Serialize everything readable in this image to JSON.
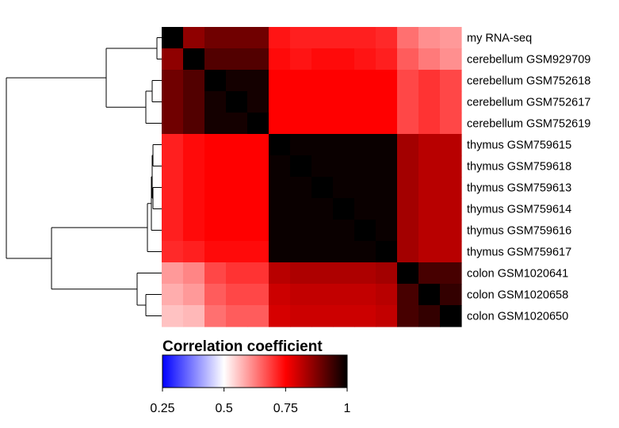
{
  "chart_data": {
    "type": "heatmap",
    "rows": [
      "my RNA-seq",
      "cerebellum GSM929709",
      "cerebellum GSM752618",
      "cerebellum GSM752617",
      "cerebellum GSM752619",
      "thymus GSM759615",
      "thymus GSM759618",
      "thymus GSM759613",
      "thymus GSM759614",
      "thymus GSM759616",
      "thymus GSM759617",
      "colon GSM1020641",
      "colon GSM1020658",
      "colon GSM1020650"
    ],
    "values": [
      [
        1.0,
        0.86,
        0.89,
        0.89,
        0.89,
        0.73,
        0.72,
        0.72,
        0.72,
        0.72,
        0.71,
        0.64,
        0.61,
        0.6
      ],
      [
        0.86,
        1.0,
        0.92,
        0.92,
        0.92,
        0.74,
        0.73,
        0.74,
        0.74,
        0.73,
        0.72,
        0.66,
        0.63,
        0.61
      ],
      [
        0.89,
        0.92,
        1.0,
        0.98,
        0.98,
        0.75,
        0.75,
        0.75,
        0.75,
        0.75,
        0.75,
        0.68,
        0.7,
        0.68
      ],
      [
        0.89,
        0.92,
        0.98,
        1.0,
        0.98,
        0.75,
        0.75,
        0.75,
        0.75,
        0.75,
        0.75,
        0.68,
        0.7,
        0.68
      ],
      [
        0.89,
        0.92,
        0.98,
        0.98,
        1.0,
        0.75,
        0.75,
        0.75,
        0.75,
        0.75,
        0.75,
        0.68,
        0.7,
        0.68
      ],
      [
        0.72,
        0.74,
        0.75,
        0.75,
        0.75,
        1.0,
        0.99,
        0.99,
        0.99,
        0.99,
        0.99,
        0.84,
        0.82,
        0.82
      ],
      [
        0.72,
        0.74,
        0.75,
        0.75,
        0.75,
        0.99,
        1.0,
        0.99,
        0.99,
        0.99,
        0.99,
        0.84,
        0.82,
        0.82
      ],
      [
        0.72,
        0.74,
        0.75,
        0.75,
        0.75,
        0.99,
        0.99,
        1.0,
        0.99,
        0.99,
        0.99,
        0.84,
        0.82,
        0.82
      ],
      [
        0.72,
        0.74,
        0.75,
        0.75,
        0.75,
        0.99,
        0.99,
        0.99,
        1.0,
        0.99,
        0.99,
        0.84,
        0.82,
        0.82
      ],
      [
        0.72,
        0.74,
        0.75,
        0.75,
        0.75,
        0.99,
        0.99,
        0.99,
        0.99,
        1.0,
        0.99,
        0.84,
        0.82,
        0.82
      ],
      [
        0.71,
        0.72,
        0.74,
        0.74,
        0.74,
        0.99,
        0.99,
        0.99,
        0.99,
        0.99,
        1.0,
        0.84,
        0.82,
        0.82
      ],
      [
        0.6,
        0.62,
        0.68,
        0.7,
        0.7,
        0.82,
        0.83,
        0.83,
        0.83,
        0.83,
        0.84,
        1.0,
        0.93,
        0.93
      ],
      [
        0.58,
        0.6,
        0.66,
        0.68,
        0.68,
        0.8,
        0.81,
        0.81,
        0.81,
        0.81,
        0.82,
        0.93,
        1.0,
        0.95
      ],
      [
        0.56,
        0.57,
        0.64,
        0.66,
        0.66,
        0.79,
        0.8,
        0.8,
        0.8,
        0.8,
        0.81,
        0.93,
        0.95,
        1.0
      ]
    ],
    "legend": {
      "title": "Correlation coefficient",
      "ticks": [
        "0.25",
        "0.5",
        "0.75",
        "1"
      ],
      "range": [
        0.25,
        1.0
      ],
      "colors": [
        "#0000ff",
        "#ffffff",
        "#ff0000",
        "#000000"
      ],
      "placement": "bottom"
    },
    "dendrogram": "left"
  }
}
